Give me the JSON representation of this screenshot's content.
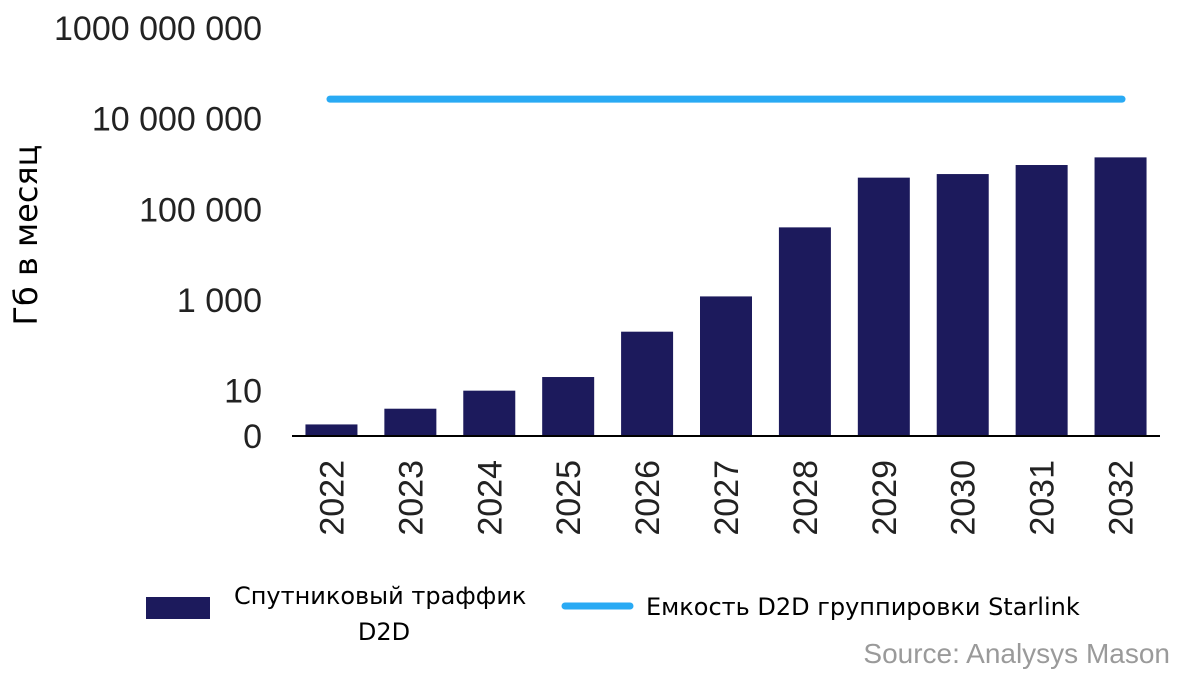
{
  "chart_data": {
    "type": "bar",
    "y_scale": "log",
    "ylabel": "Гб в месяц",
    "y_ticks": [
      {
        "value": 1,
        "label": "0"
      },
      {
        "value": 10,
        "label": "10"
      },
      {
        "value": 1000,
        "label": "1 000"
      },
      {
        "value": 100000,
        "label": "100 000"
      },
      {
        "value": 10000000,
        "label": "10 000 000"
      },
      {
        "value": 1000000000,
        "label": "1000 000 000"
      }
    ],
    "ylim": [
      1,
      1000000000
    ],
    "categories": [
      "2022",
      "2023",
      "2024",
      "2025",
      "2026",
      "2027",
      "2028",
      "2029",
      "2030",
      "2031",
      "2032"
    ],
    "series": [
      {
        "name": "Спутниковый траффик D2D",
        "type": "bar",
        "color": "#1c1a5c",
        "values": [
          1.8,
          4,
          10,
          20,
          200,
          1200,
          40000,
          500000,
          600000,
          950000,
          1400000
        ]
      },
      {
        "name": "Емкость D2D группировки Starlink",
        "type": "line",
        "color": "#29aaf4",
        "values": [
          27000000,
          27000000,
          27000000,
          27000000,
          27000000,
          27000000,
          27000000,
          27000000,
          27000000,
          27000000,
          27000000
        ]
      }
    ],
    "legend": {
      "position": "bottom",
      "bar_label_lines": [
        "Спутниковый траффик",
        "D2D"
      ],
      "line_label": "Емкость D2D группировки Starlink"
    },
    "grid": false,
    "source": "Source: Analysys Mason"
  }
}
